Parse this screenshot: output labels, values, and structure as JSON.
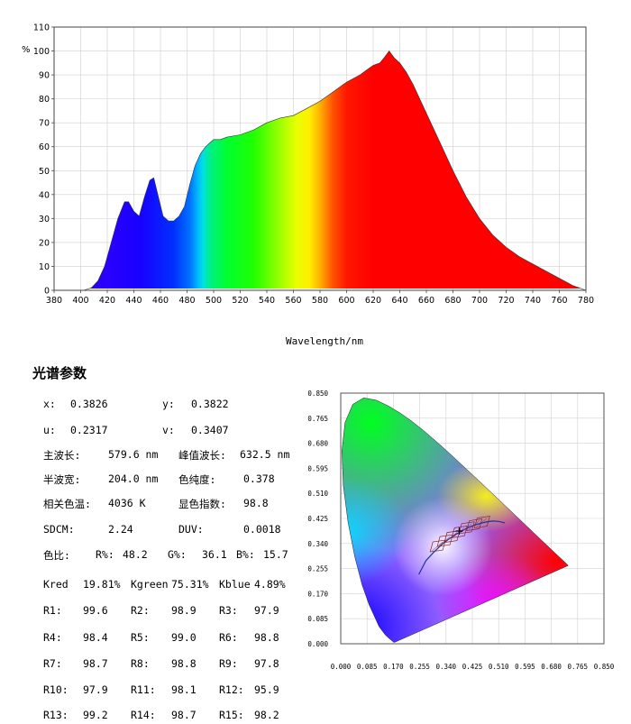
{
  "chart_data": [
    {
      "type": "area",
      "title": "",
      "xlabel": "Wavelength/nm",
      "ylabel": "%",
      "xlim": [
        380,
        780
      ],
      "ylim": [
        0,
        110
      ],
      "x_ticks": [
        "380",
        "400",
        "420",
        "440",
        "460",
        "480",
        "500",
        "520",
        "540",
        "560",
        "580",
        "600",
        "620",
        "640",
        "660",
        "680",
        "700",
        "720",
        "740",
        "760",
        "780"
      ],
      "y_ticks": [
        "0",
        "10",
        "20",
        "30",
        "40",
        "50",
        "60",
        "70",
        "80",
        "90",
        "100",
        "110"
      ],
      "grid": true,
      "fill": "visible spectrum colors",
      "series": [
        {
          "x": [
            380,
            395,
            402,
            408,
            413,
            418,
            423,
            428,
            433,
            436,
            440,
            444,
            448,
            452,
            455,
            458,
            462,
            466,
            470,
            474,
            478,
            482,
            486,
            490,
            494,
            498,
            500,
            505,
            510,
            520,
            530,
            540,
            550,
            560,
            570,
            580,
            590,
            600,
            610,
            615,
            620,
            625,
            628,
            632,
            636,
            640,
            645,
            650,
            655,
            660,
            665,
            670,
            680,
            690,
            700,
            710,
            720,
            730,
            740,
            750,
            760,
            770,
            775,
            780
          ],
          "values": [
            0,
            0,
            0,
            1,
            4,
            10,
            20,
            30,
            37,
            37,
            33,
            31,
            39,
            46,
            47,
            40,
            31,
            29,
            29,
            31,
            35,
            44,
            52,
            57,
            60,
            62,
            63,
            63,
            64,
            65,
            67,
            70,
            72,
            73,
            76,
            79,
            83,
            87,
            90,
            92,
            94,
            95,
            97,
            100,
            97,
            95,
            91,
            86,
            80,
            74,
            68,
            62,
            50,
            39,
            30,
            23,
            18,
            14,
            11,
            8,
            5,
            2,
            1,
            0
          ]
        }
      ]
    },
    {
      "type": "scatter",
      "title": "",
      "xlabel": "",
      "ylabel": "",
      "xlim": [
        0,
        0.85
      ],
      "ylim": [
        0,
        0.85
      ],
      "x_ticks": [
        "0.000",
        "0.085",
        "0.170",
        "0.255",
        "0.340",
        "0.425",
        "0.510",
        "0.595",
        "0.680",
        "0.765",
        "0.850"
      ],
      "y_ticks": [
        "0.000",
        "0.085",
        "0.170",
        "0.255",
        "0.340",
        "0.425",
        "0.510",
        "0.595",
        "0.680",
        "0.765",
        "0.850"
      ],
      "grid": true,
      "series": [
        {
          "x": [
            0.3826
          ],
          "values": [
            0.3822
          ]
        }
      ]
    }
  ],
  "section_title": "光谱参数",
  "params": {
    "x_label": "x:",
    "x_value": "0.3826",
    "y_label": "y:",
    "y_value": "0.3822",
    "u_label": "u:",
    "u_value": "0.2317",
    "v_label": "v:",
    "v_value": "0.3407",
    "dominant_label": "主波长:",
    "dominant_value": "579.6 nm",
    "peak_label": "峰值波长:",
    "peak_value": "632.5 nm",
    "halfwidth_label": "半波宽:",
    "halfwidth_value": "204.0 nm",
    "purity_label": "色纯度:",
    "purity_value": "0.378",
    "cct_label": "相关色温:",
    "cct_value": "4036 K",
    "cri_label": "显色指数:",
    "cri_value": "98.8",
    "sdcm_label": "SDCM:",
    "sdcm_value": "2.24",
    "duv_label": "DUV:",
    "duv_value": "0.0018",
    "ratio_label": "色比:",
    "r_label": "R%:",
    "r_value": "48.2",
    "g_label": "G%:",
    "g_value": "36.1",
    "b_label": "B%:",
    "b_value": "15.7",
    "kred_label": "Kred",
    "kred_value": "19.81%",
    "kgreen_label": "Kgreen",
    "kgreen_value": "75.31%",
    "kblue_label": "Kblue",
    "kblue_value": "4.89%",
    "r_items": [
      {
        "label": "R1:",
        "value": "99.6"
      },
      {
        "label": "R2:",
        "value": "98.9"
      },
      {
        "label": "R3:",
        "value": "97.9"
      },
      {
        "label": "R4:",
        "value": "98.4"
      },
      {
        "label": "R5:",
        "value": "99.0"
      },
      {
        "label": "R6:",
        "value": "98.8"
      },
      {
        "label": "R7:",
        "value": "98.7"
      },
      {
        "label": "R8:",
        "value": "98.8"
      },
      {
        "label": "R9:",
        "value": "97.8"
      },
      {
        "label": "R10:",
        "value": "97.9"
      },
      {
        "label": "R11:",
        "value": "98.1"
      },
      {
        "label": "R12:",
        "value": "95.9"
      },
      {
        "label": "R13:",
        "value": "99.2"
      },
      {
        "label": "R14:",
        "value": "98.7"
      },
      {
        "label": "R15:",
        "value": "98.2"
      }
    ]
  }
}
